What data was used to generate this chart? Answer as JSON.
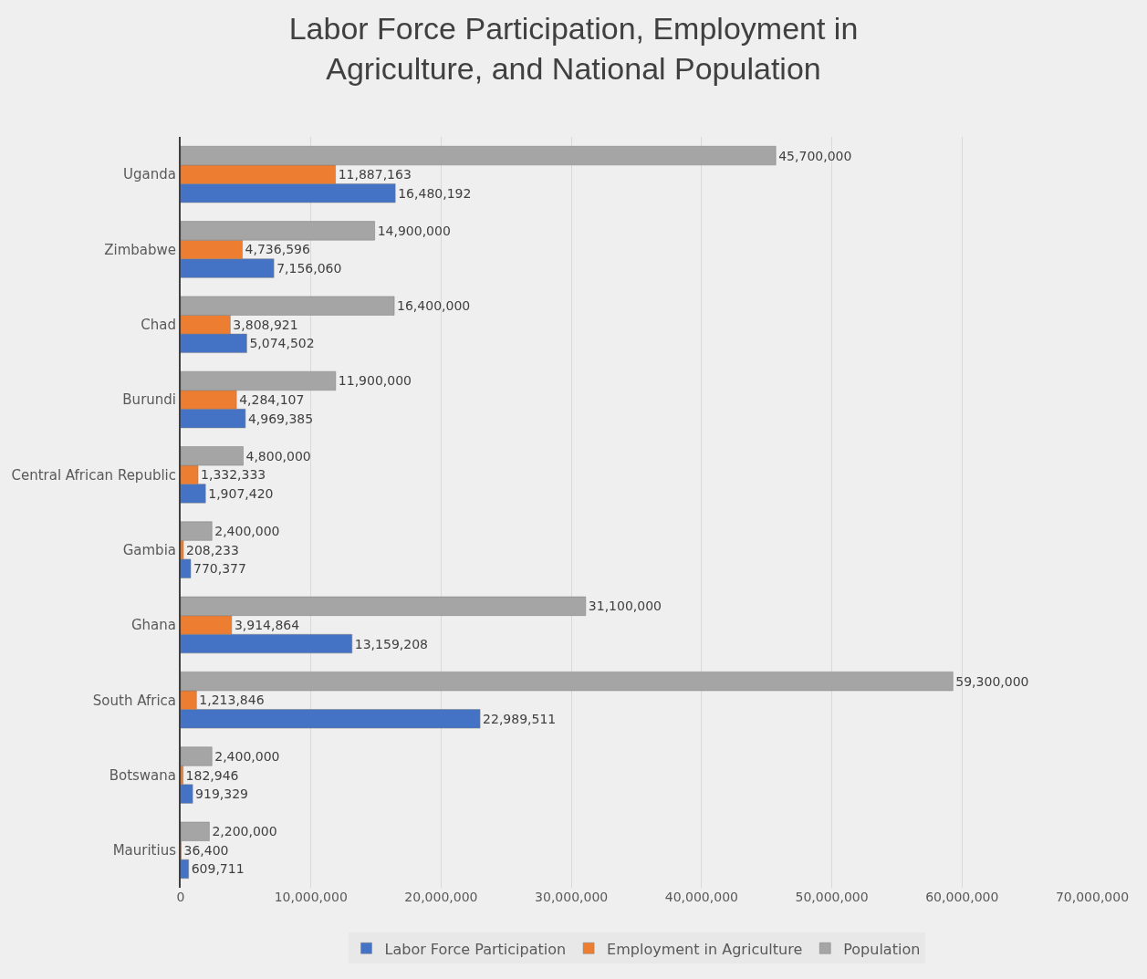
{
  "chart_data": {
    "type": "bar",
    "orientation": "horizontal",
    "title": "Labor Force Participation, Employment in Agriculture, and National Population",
    "categories": [
      "Uganda",
      "Zimbabwe",
      "Chad",
      "Burundi",
      "Central African Republic",
      "Gambia",
      "Ghana",
      "South Africa",
      "Botswana",
      "Mauritius"
    ],
    "series": [
      {
        "name": "Labor Force Participation",
        "color": "#4472c4",
        "values": [
          16480192,
          7156060,
          5074502,
          4969385,
          1907420,
          770377,
          13159208,
          22989511,
          919329,
          609711
        ],
        "value_labels": [
          "16,480,192",
          "7,156,060",
          "5,074,502",
          "4,969,385",
          "1,907,420",
          "770,377",
          "13,159,208",
          "22,989,511",
          "919,329",
          "609,711"
        ]
      },
      {
        "name": "Employment in Agriculture",
        "color": "#ed7d31",
        "values": [
          11887163,
          4736596,
          3808921,
          4284107,
          1332333,
          208233,
          3914864,
          1213846,
          182946,
          36400
        ],
        "value_labels": [
          "11,887,163",
          "4,736,596",
          "3,808,921",
          "4,284,107",
          "1,332,333",
          "208,233",
          "3,914,864",
          "1,213,846",
          "182,946",
          "36,400"
        ]
      },
      {
        "name": "Population",
        "color": "#a5a5a5",
        "values": [
          45700000,
          14900000,
          16400000,
          11900000,
          4800000,
          2400000,
          31100000,
          59300000,
          2400000,
          2200000
        ],
        "value_labels": [
          "45,700,000",
          "14,900,000",
          "16,400,000",
          "11,900,000",
          "4,800,000",
          "2,400,000",
          "31,100,000",
          "59,300,000",
          "2,400,000",
          "2,200,000"
        ]
      }
    ],
    "xlim": [
      0,
      70000000
    ],
    "xticks": [
      0,
      {
        "value": 10000000,
        "label": "10,000,000"
      },
      {
        "value": 20000000,
        "label": "20,000,000"
      },
      {
        "value": 30000000,
        "label": "30,000,000"
      },
      {
        "value": 40000000,
        "label": "40,000,000"
      },
      {
        "value": 50000000,
        "label": "50,000,000"
      },
      {
        "value": 60000000,
        "label": "60,000,000"
      },
      {
        "value": 70000000,
        "label": "70,000,000"
      }
    ],
    "grid": "x",
    "legend": "bottom"
  }
}
